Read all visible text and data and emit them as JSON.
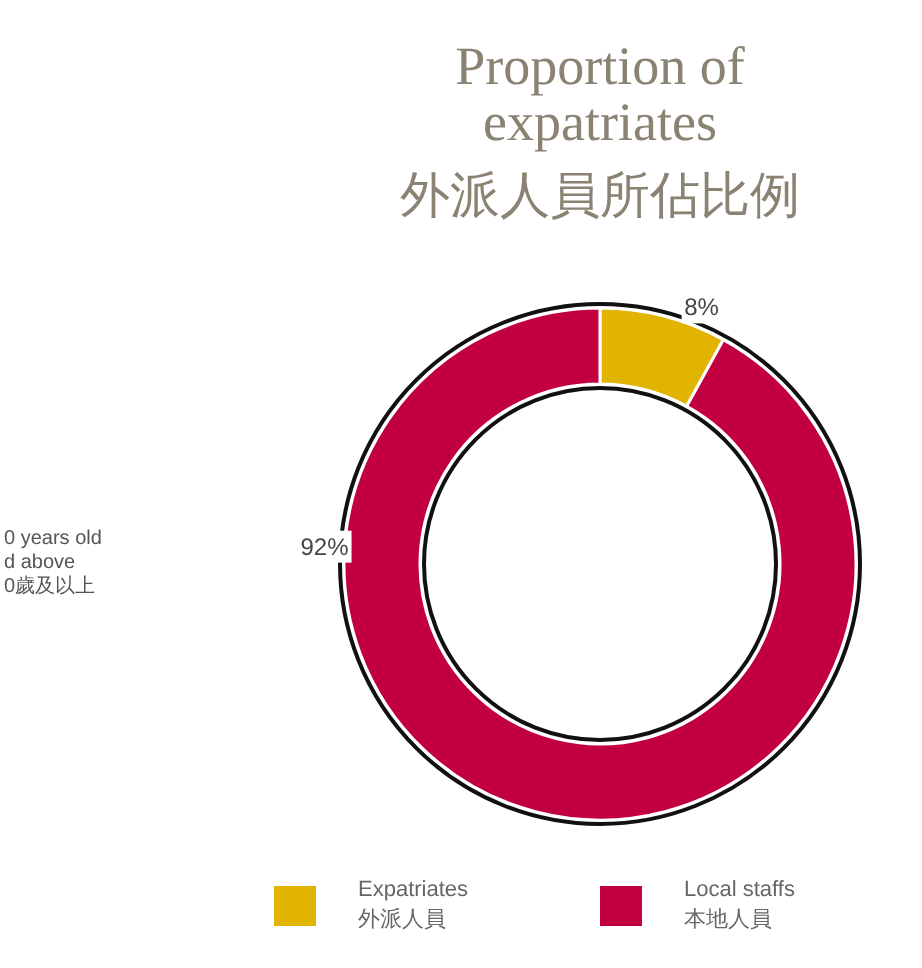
{
  "chart_data": {
    "type": "donut",
    "title": "Proportion of expatriates",
    "subtitle": "外派人員所佔比例",
    "categories": [
      "Expatriates\n外派人員",
      "Local staffs\n本地人員"
    ],
    "values": [
      8,
      92
    ],
    "colors": [
      "#e0b400",
      "#c20040"
    ],
    "value_labels": [
      "8%",
      "92%"
    ],
    "legend": "bottom",
    "annotations": [
      "0 years old\nd above\n0歲及以上"
    ]
  }
}
